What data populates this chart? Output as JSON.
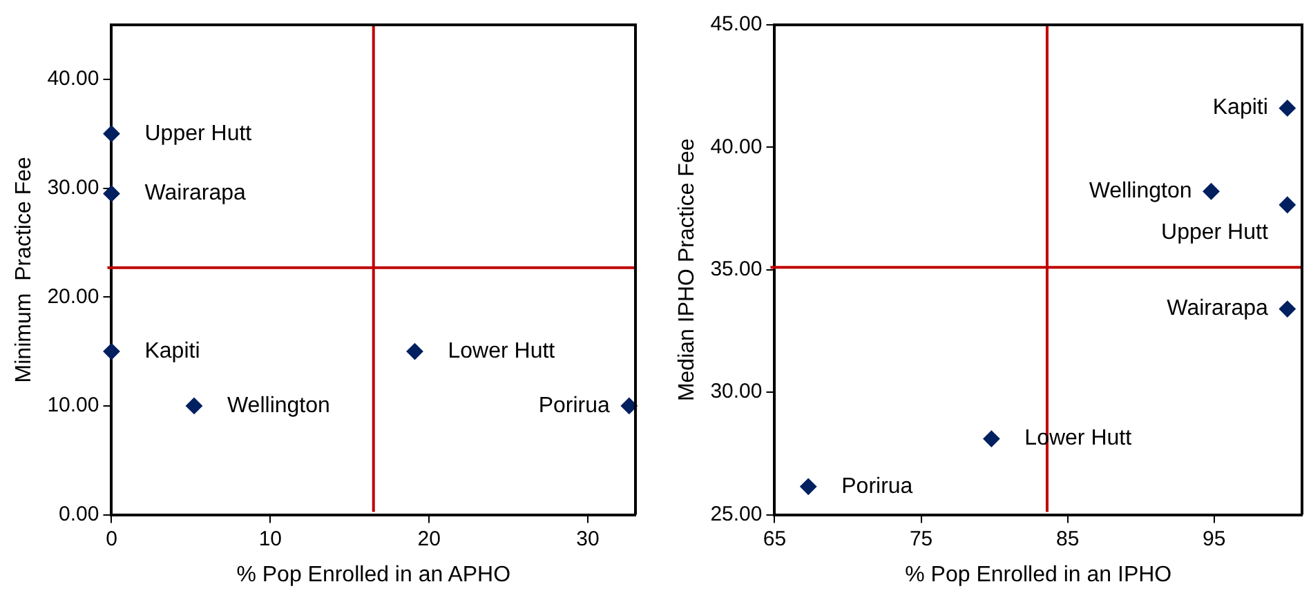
{
  "chart_data": [
    {
      "type": "scatter",
      "xlabel": "% Pop Enrolled in an APHO",
      "ylabel": "Minimum  Practice Fee",
      "xlim": [
        0,
        33
      ],
      "xticks": [
        0,
        10,
        20,
        30
      ],
      "ylim": [
        0,
        45
      ],
      "yticks": [
        {
          "value": 0,
          "label": "0.00"
        },
        {
          "value": 10,
          "label": "10.00"
        },
        {
          "value": 20,
          "label": "20.00"
        },
        {
          "value": 30,
          "label": "30.00"
        },
        {
          "value": 40,
          "label": "40.00"
        }
      ],
      "marker": "diamond",
      "series": [
        {
          "color": "#002060",
          "x": [
            0,
            0,
            0,
            5.2,
            19.1,
            32.6
          ],
          "values": [
            35.0,
            29.5,
            15.0,
            10.0,
            15.0,
            10.0
          ]
        }
      ],
      "ref_lines": [
        {
          "axis": "y",
          "value": 22.7,
          "color": "#c00000"
        },
        {
          "axis": "x",
          "value": 16.5,
          "color": "#c00000"
        }
      ],
      "annotations": [
        {
          "text": "Upper Hutt",
          "x": 0,
          "y": 35.0
        },
        {
          "text": "Wairarapa",
          "x": 0,
          "y": 29.5
        },
        {
          "text": "Kapiti",
          "x": 0,
          "y": 15.0
        },
        {
          "text": "Wellington",
          "x": 5.2,
          "y": 10.0
        },
        {
          "text": "Lower Hutt",
          "x": 19.1,
          "y": 15.0
        },
        {
          "text": "Porirua",
          "x": 32.6,
          "y": 10.0
        }
      ]
    },
    {
      "type": "scatter",
      "xlabel": "% Pop Enrolled in an IPHO",
      "ylabel": "Median IPHO Practice Fee",
      "xlim": [
        65,
        101
      ],
      "xticks": [
        65,
        75,
        85,
        95
      ],
      "ylim": [
        25,
        45
      ],
      "yticks": [
        {
          "value": 25,
          "label": "25.00"
        },
        {
          "value": 30,
          "label": "30.00"
        },
        {
          "value": 35,
          "label": "35.00"
        },
        {
          "value": 40,
          "label": "40.00"
        },
        {
          "value": 45,
          "label": "45.00"
        }
      ],
      "marker": "diamond",
      "series": [
        {
          "color": "#002060",
          "x": [
            100,
            94.8,
            100,
            100,
            79.8,
            67.3
          ],
          "values": [
            41.6,
            38.2,
            37.65,
            33.4,
            28.1,
            26.15
          ]
        }
      ],
      "ref_lines": [
        {
          "axis": "y",
          "value": 35.1,
          "color": "#c00000"
        },
        {
          "axis": "x",
          "value": 83.6,
          "color": "#c00000"
        }
      ],
      "annotations": [
        {
          "text": "Kapiti",
          "x": 100,
          "y": 41.6
        },
        {
          "text": "Wellington",
          "x": 94.8,
          "y": 38.2
        },
        {
          "text": "Upper Hutt",
          "x": 100,
          "y": 37.65
        },
        {
          "text": "Wairarapa",
          "x": 100,
          "y": 33.4
        },
        {
          "text": "Lower Hutt",
          "x": 79.8,
          "y": 28.1
        },
        {
          "text": "Porirua",
          "x": 67.3,
          "y": 26.15
        }
      ]
    }
  ]
}
